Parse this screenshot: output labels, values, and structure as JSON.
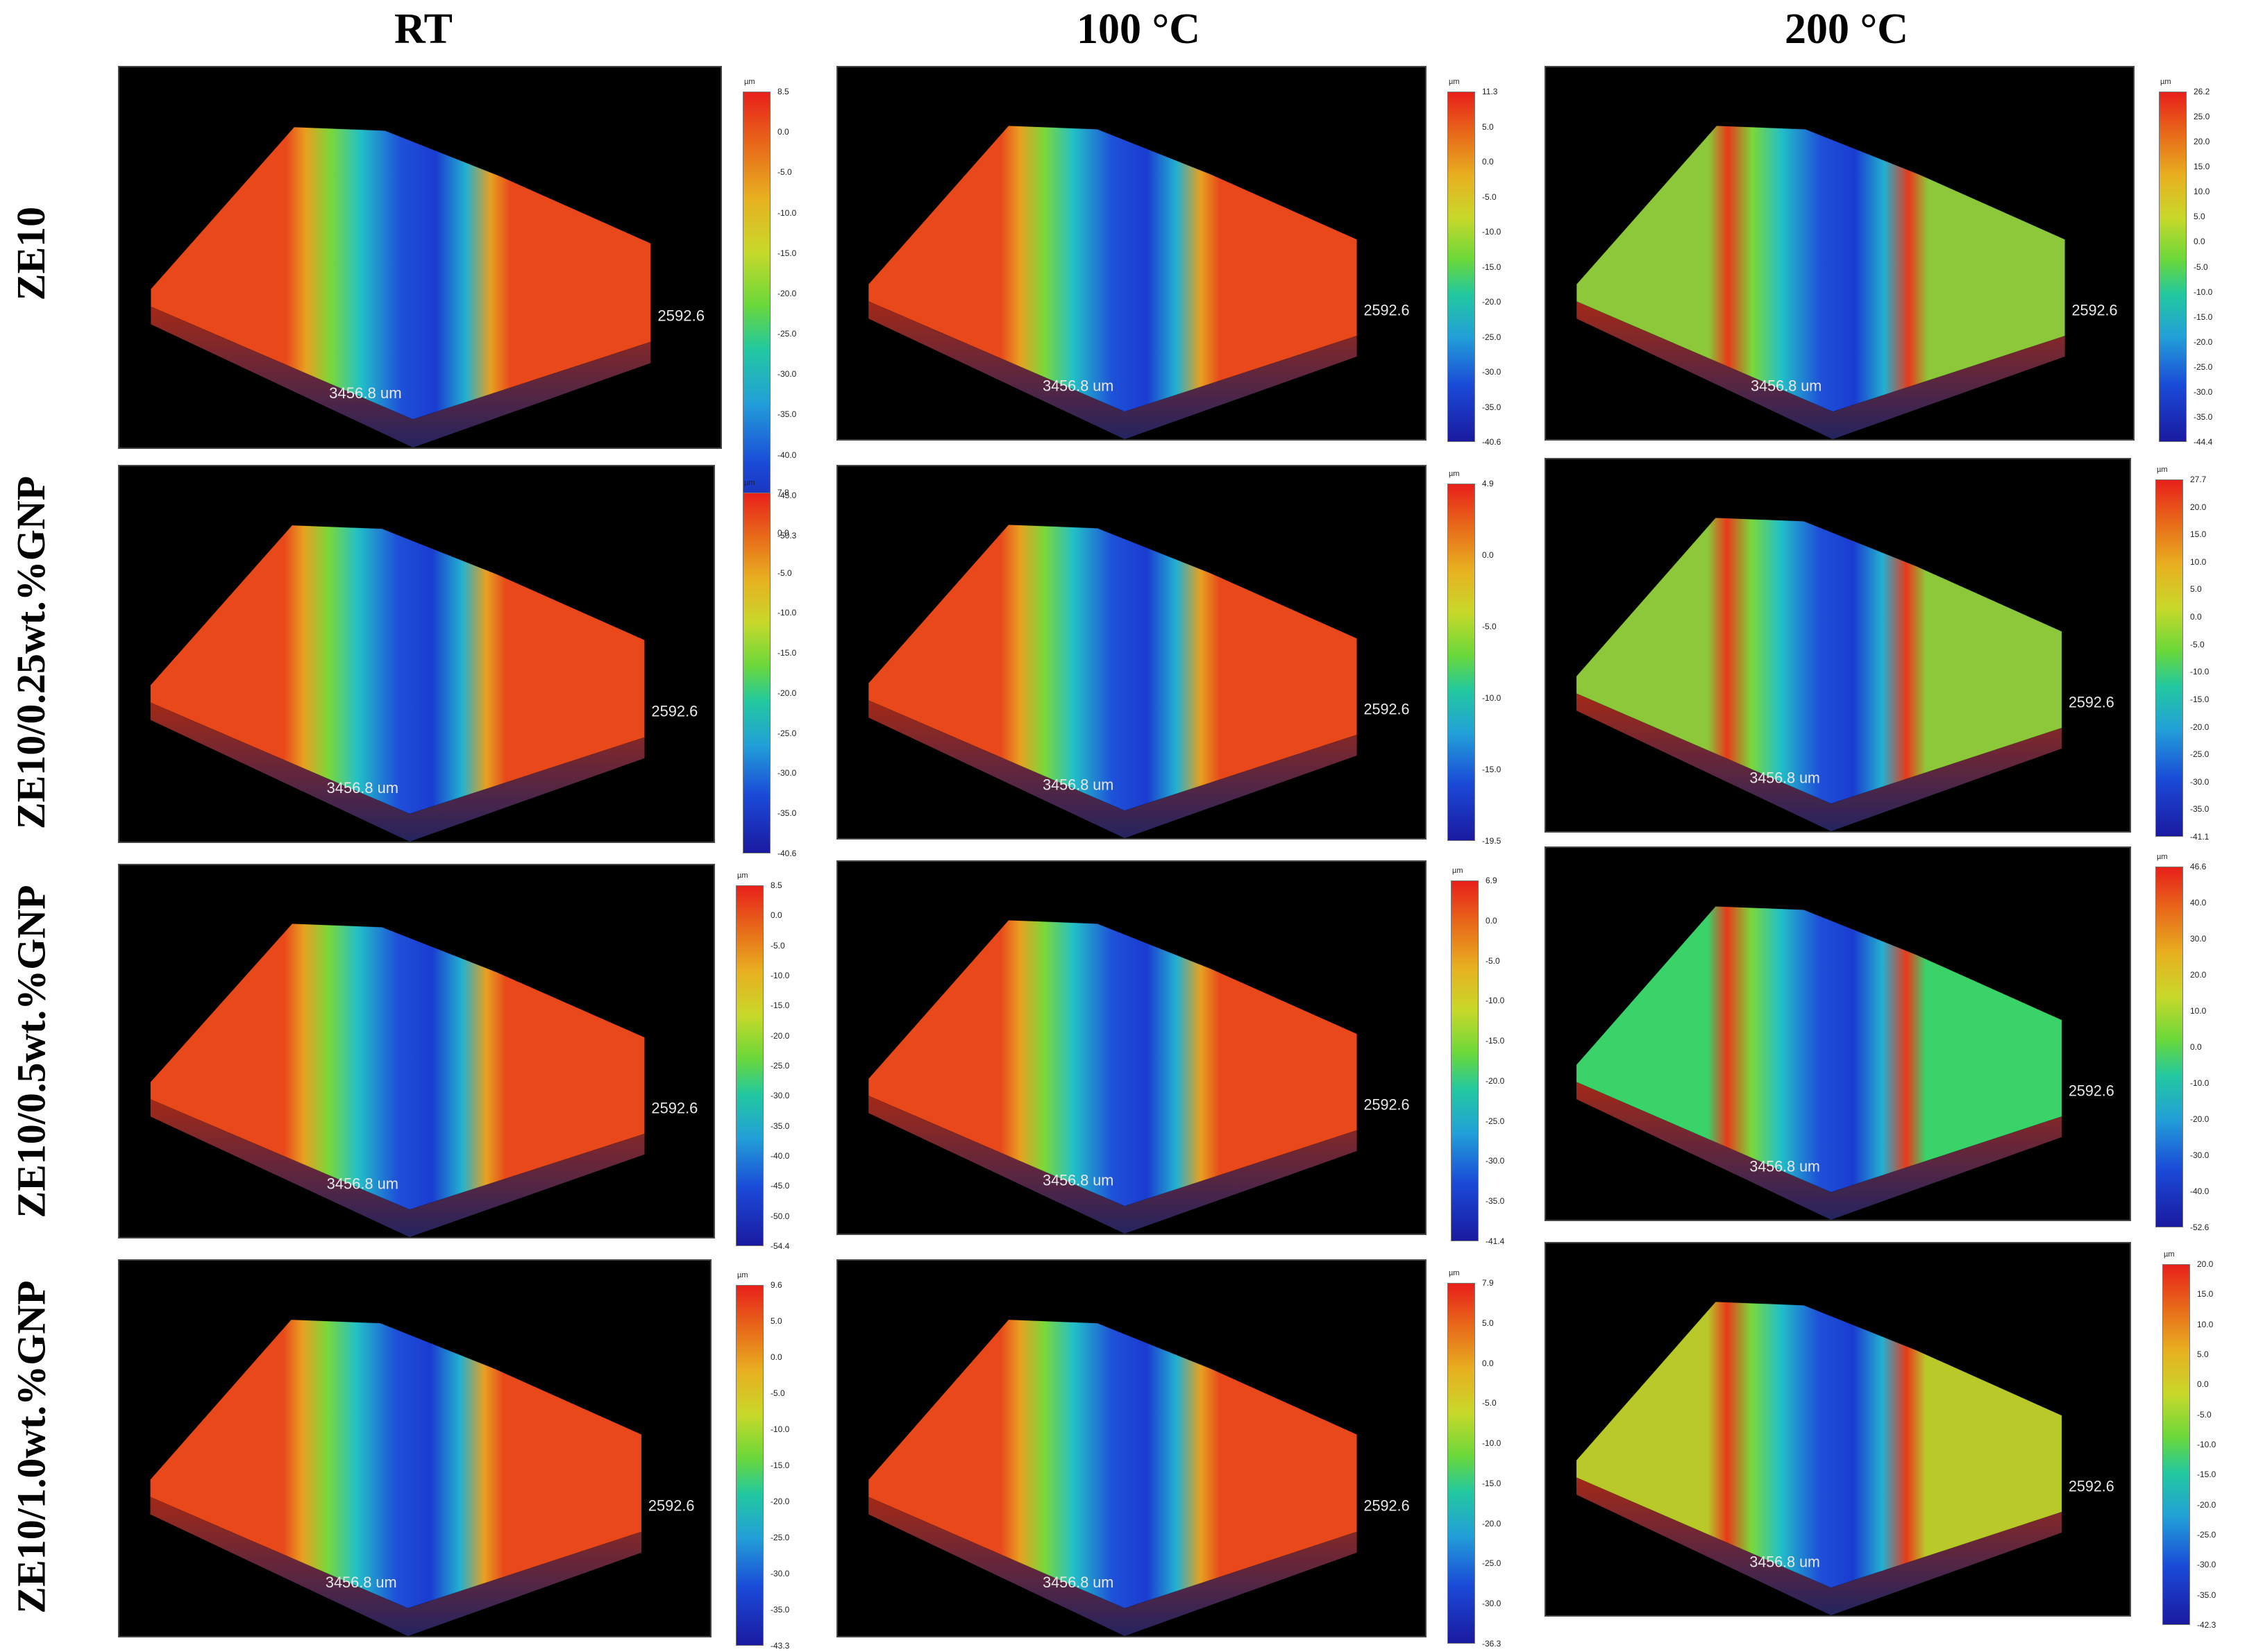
{
  "columns": [
    "RT",
    "100 °C",
    "200 °C"
  ],
  "rows": [
    "ZE10",
    "ZE10/0.25wt.%GNP",
    "ZE10/0.5wt.%GNP",
    "ZE10/1.0wt.%GNP"
  ],
  "panel_labels": {
    "width": "3456.8 um",
    "depth": "2592.6"
  },
  "colorbar_unit": "µm",
  "colorbars": [
    [
      "8.5",
      "0.0",
      "-5.0",
      "-10.0",
      "-15.0",
      "-20.0",
      "-25.0",
      "-30.0",
      "-35.0",
      "-40.0",
      "-45.0",
      "-50.3"
    ],
    [
      "11.3",
      "5.0",
      "0.0",
      "-5.0",
      "-10.0",
      "-15.0",
      "-20.0",
      "-25.0",
      "-30.0",
      "-35.0",
      "-40.6"
    ],
    [
      "26.2",
      "25.0",
      "20.0",
      "15.0",
      "10.0",
      "5.0",
      "0.0",
      "-5.0",
      "-10.0",
      "-15.0",
      "-20.0",
      "-25.0",
      "-30.0",
      "-35.0",
      "-44.4"
    ],
    [
      "7.8",
      "0.0",
      "-5.0",
      "-10.0",
      "-15.0",
      "-20.0",
      "-25.0",
      "-30.0",
      "-35.0",
      "-40.6"
    ],
    [
      "4.9",
      "0.0",
      "-5.0",
      "-10.0",
      "-15.0",
      "-19.5"
    ],
    [
      "27.7",
      "20.0",
      "15.0",
      "10.0",
      "5.0",
      "0.0",
      "-5.0",
      "-10.0",
      "-15.0",
      "-20.0",
      "-25.0",
      "-30.0",
      "-35.0",
      "-41.1"
    ],
    [
      "8.5",
      "0.0",
      "-5.0",
      "-10.0",
      "-15.0",
      "-20.0",
      "-25.0",
      "-30.0",
      "-35.0",
      "-40.0",
      "-45.0",
      "-50.0",
      "-54.4"
    ],
    [
      "6.9",
      "0.0",
      "-5.0",
      "-10.0",
      "-15.0",
      "-20.0",
      "-25.0",
      "-30.0",
      "-35.0",
      "-41.4"
    ],
    [
      "46.6",
      "40.0",
      "30.0",
      "20.0",
      "10.0",
      "0.0",
      "-10.0",
      "-20.0",
      "-30.0",
      "-40.0",
      "-52.6"
    ],
    [
      "9.6",
      "5.0",
      "0.0",
      "-5.0",
      "-10.0",
      "-15.0",
      "-20.0",
      "-25.0",
      "-30.0",
      "-35.0",
      "-43.3"
    ],
    [
      "7.9",
      "5.0",
      "0.0",
      "-5.0",
      "-10.0",
      "-15.0",
      "-20.0",
      "-25.0",
      "-30.0",
      "-36.3"
    ],
    [
      "20.0",
      "15.0",
      "10.0",
      "5.0",
      "0.0",
      "-5.0",
      "-10.0",
      "-15.0",
      "-20.0",
      "-25.0",
      "-30.0",
      "-35.0",
      "-42.3"
    ]
  ],
  "colors": {
    "surface_rt": "#e84a1a",
    "surface_200": "#9cc43a",
    "groove_deep": "#1a3cd8",
    "groove_mid": "#22b8c8"
  }
}
